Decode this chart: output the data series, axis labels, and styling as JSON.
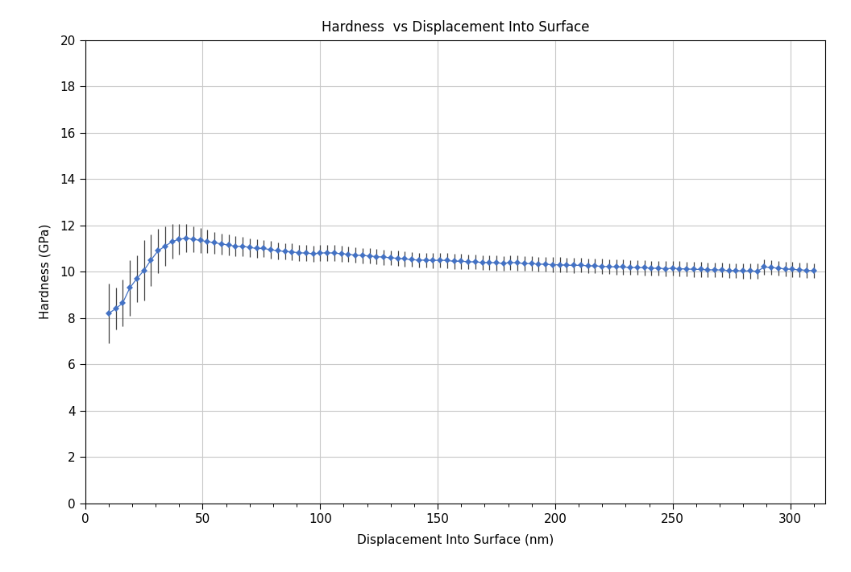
{
  "title": "Hardness  vs Displacement Into Surface",
  "xlabel": "Displacement Into Surface (nm)",
  "ylabel": "Hardness (GPa)",
  "xlim": [
    0,
    315
  ],
  "ylim": [
    0,
    20
  ],
  "xticks": [
    0,
    50,
    100,
    150,
    200,
    250,
    300
  ],
  "yticks": [
    0,
    2,
    4,
    6,
    8,
    10,
    12,
    14,
    16,
    18,
    20
  ],
  "marker_color": "#4472C4",
  "line_color": "#4472C4",
  "errorbar_color": "#404040",
  "grid_color": "#C8C8C8",
  "background_color": "#FFFFFF",
  "title_fontsize": 12,
  "label_fontsize": 11,
  "tick_fontsize": 11,
  "x_data": [
    10,
    13,
    16,
    19,
    22,
    25,
    28,
    31,
    34,
    37,
    40,
    43,
    46,
    49,
    52,
    55,
    58,
    61,
    64,
    67,
    70,
    73,
    76,
    79,
    82,
    85,
    88,
    91,
    94,
    97,
    100,
    103,
    106,
    109,
    112,
    115,
    118,
    121,
    124,
    127,
    130,
    133,
    136,
    139,
    142,
    145,
    148,
    151,
    154,
    157,
    160,
    163,
    166,
    169,
    172,
    175,
    178,
    181,
    184,
    187,
    190,
    193,
    196,
    199,
    202,
    205,
    208,
    211,
    214,
    217,
    220,
    223,
    226,
    229,
    232,
    235,
    238,
    241,
    244,
    247,
    250,
    253,
    256,
    259,
    262,
    265,
    268,
    271,
    274,
    277,
    280,
    283,
    286,
    289,
    292,
    295,
    298,
    301,
    304,
    307,
    310
  ],
  "y_data": [
    8.2,
    8.4,
    8.65,
    9.3,
    9.7,
    10.05,
    10.5,
    10.9,
    11.1,
    11.3,
    11.4,
    11.45,
    11.4,
    11.35,
    11.3,
    11.25,
    11.2,
    11.15,
    11.1,
    11.1,
    11.05,
    11.0,
    11.0,
    10.95,
    10.9,
    10.88,
    10.85,
    10.82,
    10.8,
    10.78,
    10.8,
    10.82,
    10.8,
    10.78,
    10.75,
    10.72,
    10.7,
    10.68,
    10.65,
    10.63,
    10.6,
    10.58,
    10.55,
    10.52,
    10.5,
    10.5,
    10.48,
    10.5,
    10.48,
    10.45,
    10.45,
    10.43,
    10.42,
    10.4,
    10.4,
    10.38,
    10.36,
    10.4,
    10.38,
    10.35,
    10.35,
    10.33,
    10.32,
    10.3,
    10.3,
    10.28,
    10.27,
    10.28,
    10.25,
    10.25,
    10.23,
    10.22,
    10.2,
    10.2,
    10.18,
    10.18,
    10.17,
    10.15,
    10.15,
    10.13,
    10.15,
    10.13,
    10.12,
    10.1,
    10.1,
    10.08,
    10.08,
    10.07,
    10.05,
    10.05,
    10.03,
    10.03,
    10.02,
    10.2,
    10.18,
    10.15,
    10.12,
    10.1,
    10.08,
    10.06,
    10.05
  ],
  "y_err": [
    1.3,
    0.9,
    1.0,
    1.2,
    1.0,
    1.3,
    1.1,
    0.95,
    0.85,
    0.75,
    0.65,
    0.6,
    0.55,
    0.55,
    0.5,
    0.48,
    0.45,
    0.45,
    0.43,
    0.42,
    0.4,
    0.4,
    0.38,
    0.38,
    0.37,
    0.36,
    0.36,
    0.35,
    0.35,
    0.35,
    0.35,
    0.35,
    0.34,
    0.34,
    0.34,
    0.34,
    0.33,
    0.33,
    0.33,
    0.33,
    0.32,
    0.32,
    0.32,
    0.32,
    0.32,
    0.32,
    0.32,
    0.32,
    0.32,
    0.32,
    0.32,
    0.32,
    0.32,
    0.32,
    0.32,
    0.32,
    0.32,
    0.32,
    0.32,
    0.32,
    0.32,
    0.32,
    0.32,
    0.32,
    0.32,
    0.32,
    0.32,
    0.32,
    0.32,
    0.32,
    0.32,
    0.32,
    0.32,
    0.32,
    0.32,
    0.32,
    0.32,
    0.32,
    0.32,
    0.32,
    0.32,
    0.32,
    0.32,
    0.32,
    0.32,
    0.32,
    0.32,
    0.32,
    0.32,
    0.32,
    0.32,
    0.32,
    0.32,
    0.32,
    0.32,
    0.32,
    0.32,
    0.32,
    0.32,
    0.32,
    0.32
  ]
}
